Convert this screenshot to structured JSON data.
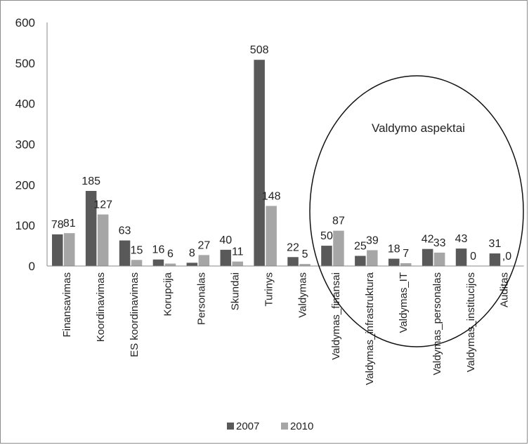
{
  "chart_data": {
    "type": "bar",
    "title": "",
    "xlabel": "",
    "ylabel": "",
    "ylim": [
      0,
      600
    ],
    "yticks": [
      "0",
      "100",
      "200",
      "300",
      "400",
      "500",
      "600"
    ],
    "grid": false,
    "legend_position": "bottom",
    "categories": [
      "Finansavimas",
      "Koordinavimas",
      "ES koordinavimas",
      "Korupcija",
      "Personalas",
      "Skundai",
      "Turinys",
      "Valdymas",
      "Valdymas_finansai",
      "Valdymas_infrastruktura",
      "Valdymas_IT",
      "Valdymas_personalas",
      "Valdymas_institucijos",
      "Auditas"
    ],
    "series": [
      {
        "name": "2007",
        "color": "#595959",
        "values": [
          78,
          185,
          63,
          16,
          8,
          40,
          508,
          22,
          50,
          25,
          18,
          42,
          43,
          31
        ],
        "labels": [
          "78",
          "185",
          "63",
          "16",
          "8",
          "40",
          "508",
          "22",
          "50",
          "25",
          "18",
          "42",
          "43",
          "31"
        ]
      },
      {
        "name": "2010",
        "color": "#a6a6a6",
        "values": [
          81,
          127,
          15,
          6,
          27,
          11,
          148,
          5,
          87,
          39,
          7,
          33,
          0,
          0
        ],
        "labels": [
          "81",
          "127",
          "15",
          "6",
          "27",
          "11",
          "148",
          "5",
          "87",
          "39",
          "7",
          "33",
          "0",
          ",0"
        ]
      }
    ],
    "annotation": {
      "text": "Valdymo aspektai",
      "shape": "ellipse",
      "covers_categories": [
        "Valdymas_finansai",
        "Valdymas_infrastruktura",
        "Valdymas_IT",
        "Valdymas_personalas",
        "Valdymas_institucijos"
      ]
    }
  }
}
